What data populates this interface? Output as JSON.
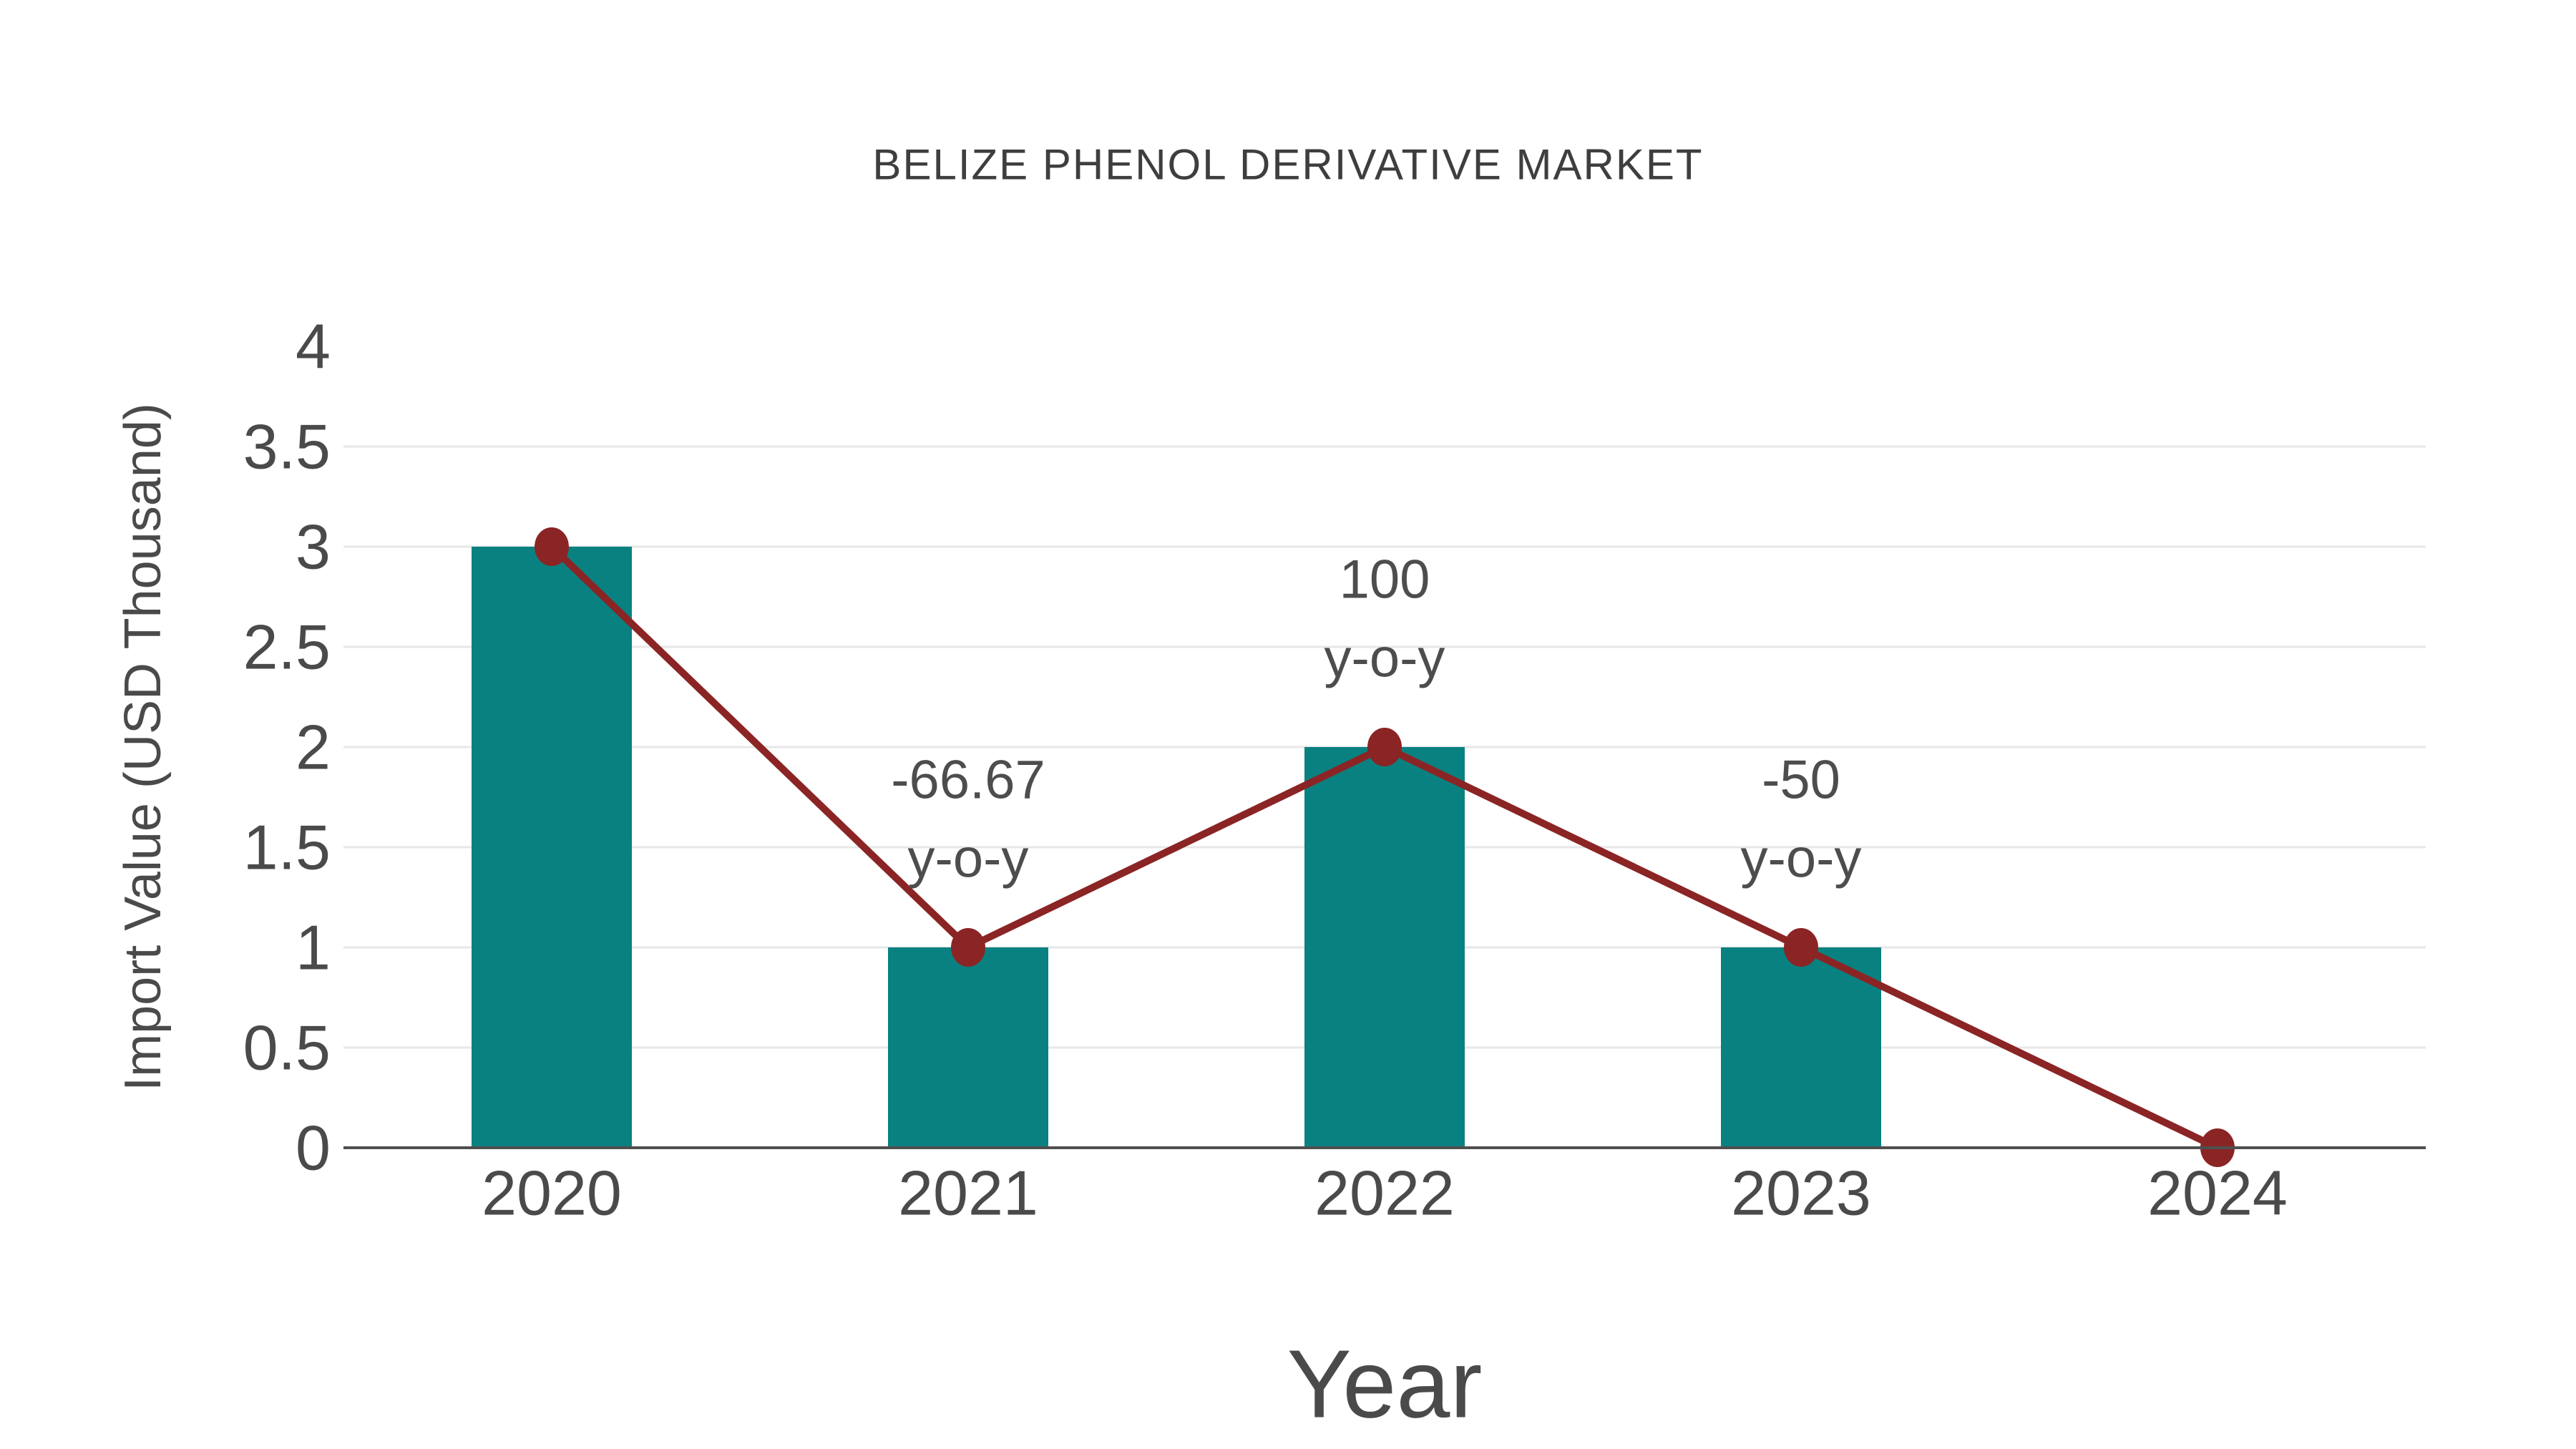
{
  "chart": {
    "title": "BELIZE PHENOL DERIVATIVE MARKET",
    "x_axis_label": "Year",
    "y_axis_label": "Import Value (USD Thousand)"
  },
  "chart_data": {
    "type": "bar",
    "title": "BELIZE PHENOL DERIVATIVE MARKET",
    "xlabel": "Year",
    "ylabel": "Import Value (USD Thousand)",
    "categories": [
      "2020",
      "2021",
      "2022",
      "2023",
      "2024"
    ],
    "series": [
      {
        "name": "Import Value bars",
        "type": "bar",
        "values": [
          3,
          1,
          2,
          1,
          0
        ]
      },
      {
        "name": "Import Value trend line",
        "type": "line",
        "values": [
          3,
          1,
          2,
          1,
          0
        ]
      }
    ],
    "annotations": [
      {
        "category": "2021",
        "line1": "-66.67",
        "line2": "y-o-y"
      },
      {
        "category": "2022",
        "line1": "100",
        "line2": "y-o-y"
      },
      {
        "category": "2023",
        "line1": "-50",
        "line2": "y-o-y"
      }
    ],
    "ylim": [
      0,
      4
    ],
    "yticks": [
      "0",
      "0.5",
      "1",
      "1.5",
      "2",
      "2.5",
      "3",
      "3.5",
      "4"
    ],
    "grid": true,
    "legend_position": "none"
  },
  "colors": {
    "bar": "#0a8181",
    "line": "#8b2424",
    "marker": "#8b2424",
    "grid": "#e7e7e7",
    "axis": "#4f4f4f",
    "tick_text": "#4a4a4a",
    "annotation_text": "#4d4d4d",
    "title_text": "#3e3e3e",
    "background": "#ffffff"
  }
}
